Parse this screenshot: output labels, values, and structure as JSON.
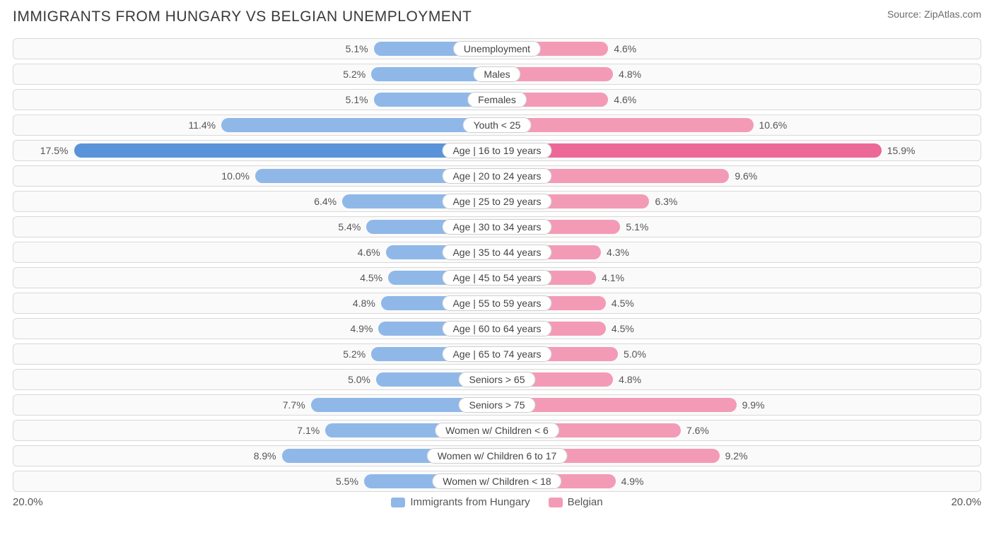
{
  "chart": {
    "type": "butterfly-bar",
    "title": "IMMIGRANTS FROM HUNGARY VS BELGIAN UNEMPLOYMENT",
    "source": "Source: ZipAtlas.com",
    "axis_max_pct": 20.0,
    "axis_max_label_left": "20.0%",
    "axis_max_label_right": "20.0%",
    "background_color": "#ffffff",
    "row_bg": "#fafafa",
    "row_border": "#d9d9d9",
    "title_color": "#3a3a3a",
    "label_color": "#555555",
    "left_series": {
      "name": "Immigrants from Hungary",
      "color_default": "#8fb8e8",
      "color_highlight": "#5a93d9"
    },
    "right_series": {
      "name": "Belgian",
      "color_default": "#f39bb6",
      "color_highlight": "#ec6896"
    },
    "rows": [
      {
        "category": "Unemployment",
        "left_val": 5.1,
        "right_val": 4.6,
        "left_label": "5.1%",
        "right_label": "4.6%",
        "highlight": false
      },
      {
        "category": "Males",
        "left_val": 5.2,
        "right_val": 4.8,
        "left_label": "5.2%",
        "right_label": "4.8%",
        "highlight": false
      },
      {
        "category": "Females",
        "left_val": 5.1,
        "right_val": 4.6,
        "left_label": "5.1%",
        "right_label": "4.6%",
        "highlight": false
      },
      {
        "category": "Youth < 25",
        "left_val": 11.4,
        "right_val": 10.6,
        "left_label": "11.4%",
        "right_label": "10.6%",
        "highlight": false
      },
      {
        "category": "Age | 16 to 19 years",
        "left_val": 17.5,
        "right_val": 15.9,
        "left_label": "17.5%",
        "right_label": "15.9%",
        "highlight": true
      },
      {
        "category": "Age | 20 to 24 years",
        "left_val": 10.0,
        "right_val": 9.6,
        "left_label": "10.0%",
        "right_label": "9.6%",
        "highlight": false
      },
      {
        "category": "Age | 25 to 29 years",
        "left_val": 6.4,
        "right_val": 6.3,
        "left_label": "6.4%",
        "right_label": "6.3%",
        "highlight": false
      },
      {
        "category": "Age | 30 to 34 years",
        "left_val": 5.4,
        "right_val": 5.1,
        "left_label": "5.4%",
        "right_label": "5.1%",
        "highlight": false
      },
      {
        "category": "Age | 35 to 44 years",
        "left_val": 4.6,
        "right_val": 4.3,
        "left_label": "4.6%",
        "right_label": "4.3%",
        "highlight": false
      },
      {
        "category": "Age | 45 to 54 years",
        "left_val": 4.5,
        "right_val": 4.1,
        "left_label": "4.5%",
        "right_label": "4.1%",
        "highlight": false
      },
      {
        "category": "Age | 55 to 59 years",
        "left_val": 4.8,
        "right_val": 4.5,
        "left_label": "4.8%",
        "right_label": "4.5%",
        "highlight": false
      },
      {
        "category": "Age | 60 to 64 years",
        "left_val": 4.9,
        "right_val": 4.5,
        "left_label": "4.9%",
        "right_label": "4.5%",
        "highlight": false
      },
      {
        "category": "Age | 65 to 74 years",
        "left_val": 5.2,
        "right_val": 5.0,
        "left_label": "5.2%",
        "right_label": "5.0%",
        "highlight": false
      },
      {
        "category": "Seniors > 65",
        "left_val": 5.0,
        "right_val": 4.8,
        "left_label": "5.0%",
        "right_label": "4.8%",
        "highlight": false
      },
      {
        "category": "Seniors > 75",
        "left_val": 7.7,
        "right_val": 9.9,
        "left_label": "7.7%",
        "right_label": "9.9%",
        "highlight": false
      },
      {
        "category": "Women w/ Children < 6",
        "left_val": 7.1,
        "right_val": 7.6,
        "left_label": "7.1%",
        "right_label": "7.6%",
        "highlight": false
      },
      {
        "category": "Women w/ Children 6 to 17",
        "left_val": 8.9,
        "right_val": 9.2,
        "left_label": "8.9%",
        "right_label": "9.2%",
        "highlight": false
      },
      {
        "category": "Women w/ Children < 18",
        "left_val": 5.5,
        "right_val": 4.9,
        "left_label": "5.5%",
        "right_label": "4.9%",
        "highlight": false
      }
    ]
  }
}
